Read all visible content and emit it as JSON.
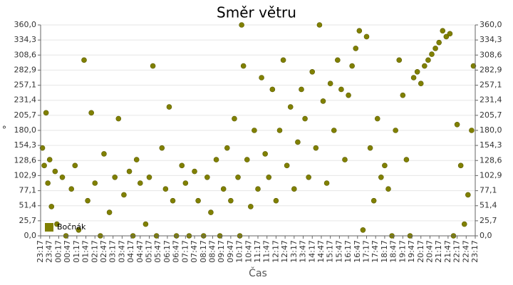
{
  "chart_data": {
    "type": "scatter",
    "title": "Směr větru",
    "x_label": "Čas",
    "y_label": "°",
    "series": [
      {
        "name": "Bočnák",
        "color": "#808000",
        "x": [
          0.1,
          0.2,
          0.3,
          0.4,
          0.5,
          0.6,
          0.8,
          0.9,
          1.2,
          1.4,
          1.7,
          1.9,
          2.1,
          2.4,
          2.6,
          2.8,
          3.0,
          3.3,
          3.5,
          3.8,
          4.1,
          4.3,
          4.6,
          4.9,
          5.1,
          5.3,
          5.5,
          5.8,
          6.0,
          6.2,
          6.4,
          6.7,
          6.9,
          7.1,
          7.3,
          7.5,
          7.8,
          8.0,
          8.2,
          8.5,
          8.7,
          9.0,
          9.2,
          9.4,
          9.7,
          9.9,
          10.1,
          10.3,
          10.5,
          10.7,
          10.9,
          11.0,
          11.1,
          11.2,
          11.4,
          11.6,
          11.8,
          12.0,
          12.2,
          12.4,
          12.6,
          12.8,
          13.0,
          13.2,
          13.4,
          13.6,
          13.8,
          14.0,
          14.2,
          14.4,
          14.6,
          14.8,
          15.0,
          15.2,
          15.4,
          15.6,
          15.8,
          16.0,
          16.2,
          16.4,
          16.6,
          16.8,
          17.0,
          17.2,
          17.4,
          17.6,
          17.8,
          18.0,
          18.2,
          18.4,
          18.6,
          18.8,
          19.0,
          19.2,
          19.4,
          19.6,
          19.8,
          20.0,
          20.2,
          20.4,
          20.6,
          20.8,
          21.0,
          21.2,
          21.4,
          21.6,
          21.8,
          22.0,
          22.2,
          22.4,
          22.6,
          22.8,
          23.0,
          23.2,
          23.4,
          23.6,
          23.8,
          23.9
        ],
        "values": [
          150,
          120,
          210,
          90,
          130,
          50,
          110,
          20,
          100,
          0,
          80,
          120,
          10,
          300,
          60,
          210,
          90,
          0,
          140,
          40,
          100,
          200,
          70,
          110,
          0,
          130,
          90,
          20,
          100,
          290,
          0,
          150,
          80,
          220,
          60,
          0,
          120,
          90,
          0,
          110,
          60,
          0,
          100,
          40,
          130,
          0,
          80,
          150,
          60,
          200,
          100,
          0,
          360,
          290,
          130,
          50,
          180,
          80,
          270,
          140,
          100,
          250,
          60,
          180,
          300,
          120,
          220,
          80,
          160,
          250,
          200,
          100,
          280,
          150,
          360,
          230,
          90,
          260,
          180,
          300,
          250,
          130,
          240,
          290,
          320,
          350,
          10,
          340,
          150,
          60,
          200,
          100,
          120,
          80,
          0,
          180,
          300,
          240,
          130,
          0,
          270,
          280,
          260,
          290,
          300,
          310,
          320,
          330,
          350,
          340,
          345,
          0,
          190,
          120,
          20,
          70,
          180,
          290
        ]
      }
    ],
    "xlim": [
      0,
      24
    ],
    "ylim": [
      0,
      360
    ],
    "xticks": [
      {
        "value": 0,
        "label": "23:17"
      },
      {
        "value": 0.5,
        "label": "23:47"
      },
      {
        "value": 1,
        "label": "00:17"
      },
      {
        "value": 1.5,
        "label": "00:47"
      },
      {
        "value": 2,
        "label": "01:17"
      },
      {
        "value": 2.5,
        "label": "01:47"
      },
      {
        "value": 3,
        "label": "02:17"
      },
      {
        "value": 3.5,
        "label": "02:47"
      },
      {
        "value": 4,
        "label": "03:17"
      },
      {
        "value": 4.5,
        "label": "03:47"
      },
      {
        "value": 5,
        "label": "04:17"
      },
      {
        "value": 5.5,
        "label": "04:47"
      },
      {
        "value": 6,
        "label": "05:17"
      },
      {
        "value": 6.5,
        "label": "05:47"
      },
      {
        "value": 7,
        "label": "06:17"
      },
      {
        "value": 7.5,
        "label": "06:47"
      },
      {
        "value": 8,
        "label": "07:17"
      },
      {
        "value": 8.5,
        "label": "07:47"
      },
      {
        "value": 9,
        "label": "08:17"
      },
      {
        "value": 9.5,
        "label": "08:47"
      },
      {
        "value": 10,
        "label": "09:17"
      },
      {
        "value": 10.5,
        "label": "09:47"
      },
      {
        "value": 11,
        "label": "10:17"
      },
      {
        "value": 11.5,
        "label": "10:47"
      },
      {
        "value": 12,
        "label": "11:17"
      },
      {
        "value": 12.5,
        "label": "11:47"
      },
      {
        "value": 13,
        "label": "12:17"
      },
      {
        "value": 13.5,
        "label": "12:47"
      },
      {
        "value": 14,
        "label": "13:17"
      },
      {
        "value": 14.5,
        "label": "13:47"
      },
      {
        "value": 15,
        "label": "14:17"
      },
      {
        "value": 15.5,
        "label": "14:47"
      },
      {
        "value": 16,
        "label": "15:17"
      },
      {
        "value": 16.5,
        "label": "15:47"
      },
      {
        "value": 17,
        "label": "16:17"
      },
      {
        "value": 17.5,
        "label": "16:47"
      },
      {
        "value": 18,
        "label": "17:17"
      },
      {
        "value": 18.5,
        "label": "17:47"
      },
      {
        "value": 19,
        "label": "18:17"
      },
      {
        "value": 19.5,
        "label": "18:47"
      },
      {
        "value": 20,
        "label": "19:17"
      },
      {
        "value": 20.5,
        "label": "19:47"
      },
      {
        "value": 21,
        "label": "20:17"
      },
      {
        "value": 21.5,
        "label": "20:47"
      },
      {
        "value": 22,
        "label": "21:17"
      },
      {
        "value": 22.5,
        "label": "21:47"
      },
      {
        "value": 23,
        "label": "22:17"
      },
      {
        "value": 23.5,
        "label": "22:47"
      },
      {
        "value": 24,
        "label": "23:17"
      }
    ],
    "yticks": [
      {
        "value": 0,
        "label": "0,0"
      },
      {
        "value": 25.7,
        "label": "25,7"
      },
      {
        "value": 51.4,
        "label": "51,4"
      },
      {
        "value": 77.1,
        "label": "77,1"
      },
      {
        "value": 102.9,
        "label": "102,9"
      },
      {
        "value": 128.6,
        "label": "128,6"
      },
      {
        "value": 154.3,
        "label": "154,3"
      },
      {
        "value": 180,
        "label": "180,0"
      },
      {
        "value": 205.7,
        "label": "205,7"
      },
      {
        "value": 231.4,
        "label": "231,4"
      },
      {
        "value": 257.1,
        "label": "257,1"
      },
      {
        "value": 282.9,
        "label": "282,9"
      },
      {
        "value": 308.6,
        "label": "308,6"
      },
      {
        "value": 334.3,
        "label": "334,3"
      },
      {
        "value": 360,
        "label": "360,0"
      }
    ],
    "grid": true,
    "legend": "bottom-left"
  }
}
